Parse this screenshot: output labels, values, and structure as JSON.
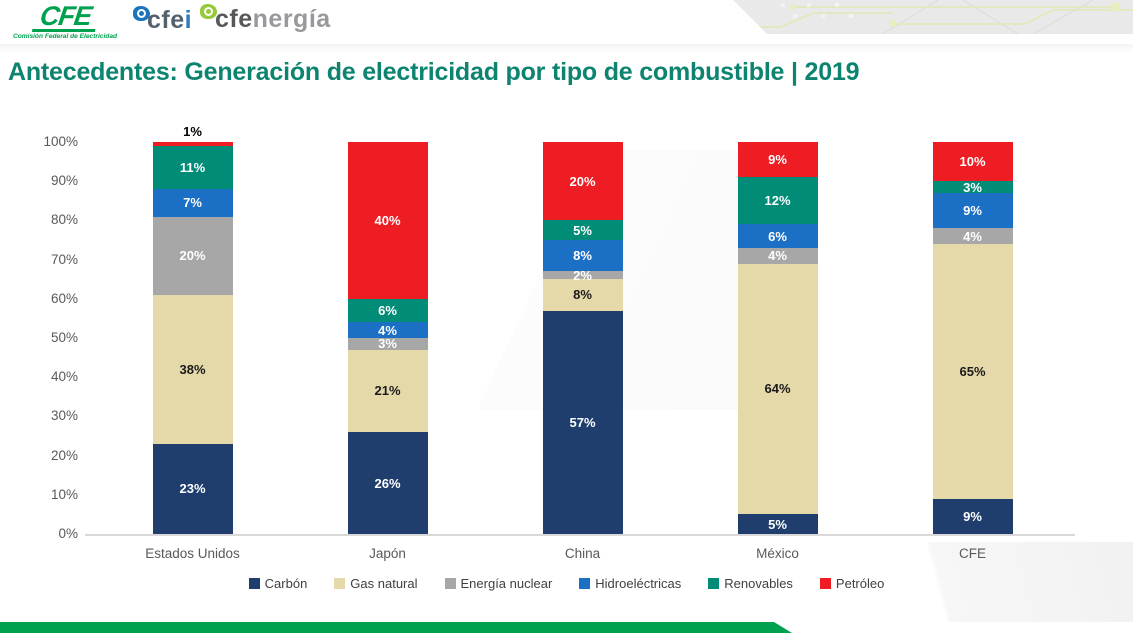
{
  "header": {
    "logos": {
      "cfe": {
        "text": "CFE",
        "subtitle": "Comisión Federal de Electricidad"
      },
      "cfei": {
        "prefix": "cfe",
        "suffix": "i"
      },
      "cfenergia": {
        "prefix": "cfe",
        "suffix": "nergía"
      }
    }
  },
  "title": "Antecedentes: Generación de electricidad por tipo de combustible | 2019",
  "chart_data": {
    "type": "bar",
    "stacked": true,
    "title": "Generación de electricidad por tipo de combustible 2019",
    "categories": [
      "Estados Unidos",
      "Japón",
      "China",
      "México",
      "CFE"
    ],
    "series": [
      {
        "name": "Carbón",
        "color": "#1F3E6D",
        "values": [
          23,
          26,
          57,
          5,
          9
        ]
      },
      {
        "name": "Gas natural",
        "color": "#E6D9A9",
        "values": [
          38,
          21,
          8,
          64,
          65
        ]
      },
      {
        "name": "Energía nuclear",
        "color": "#A7A7A7",
        "values": [
          20,
          3,
          2,
          4,
          4
        ]
      },
      {
        "name": "Hidroeléctricas",
        "color": "#1B6FC4",
        "values": [
          7,
          4,
          8,
          6,
          9
        ]
      },
      {
        "name": "Renovables",
        "color": "#008C76",
        "values": [
          11,
          6,
          5,
          12,
          3
        ]
      },
      {
        "name": "Petróleo",
        "color": "#EE1C23",
        "values": [
          1,
          40,
          20,
          9,
          10
        ]
      }
    ],
    "y_ticks": [
      "100%",
      "90%",
      "80%",
      "70%",
      "60%",
      "50%",
      "40%",
      "30%",
      "20%",
      "10%",
      "0%"
    ],
    "ylim": [
      0,
      100
    ],
    "grid": false,
    "legend_position": "bottom",
    "value_label_suffix": "%"
  },
  "colors": {
    "title_teal": "#0C8470",
    "footer_green": "#00A14E",
    "axis_text": "#595959",
    "legend_text": "#404040",
    "logo_green": "#00A14E",
    "logo_blue": "#1C74BE",
    "logo_lime": "#97C93D"
  }
}
